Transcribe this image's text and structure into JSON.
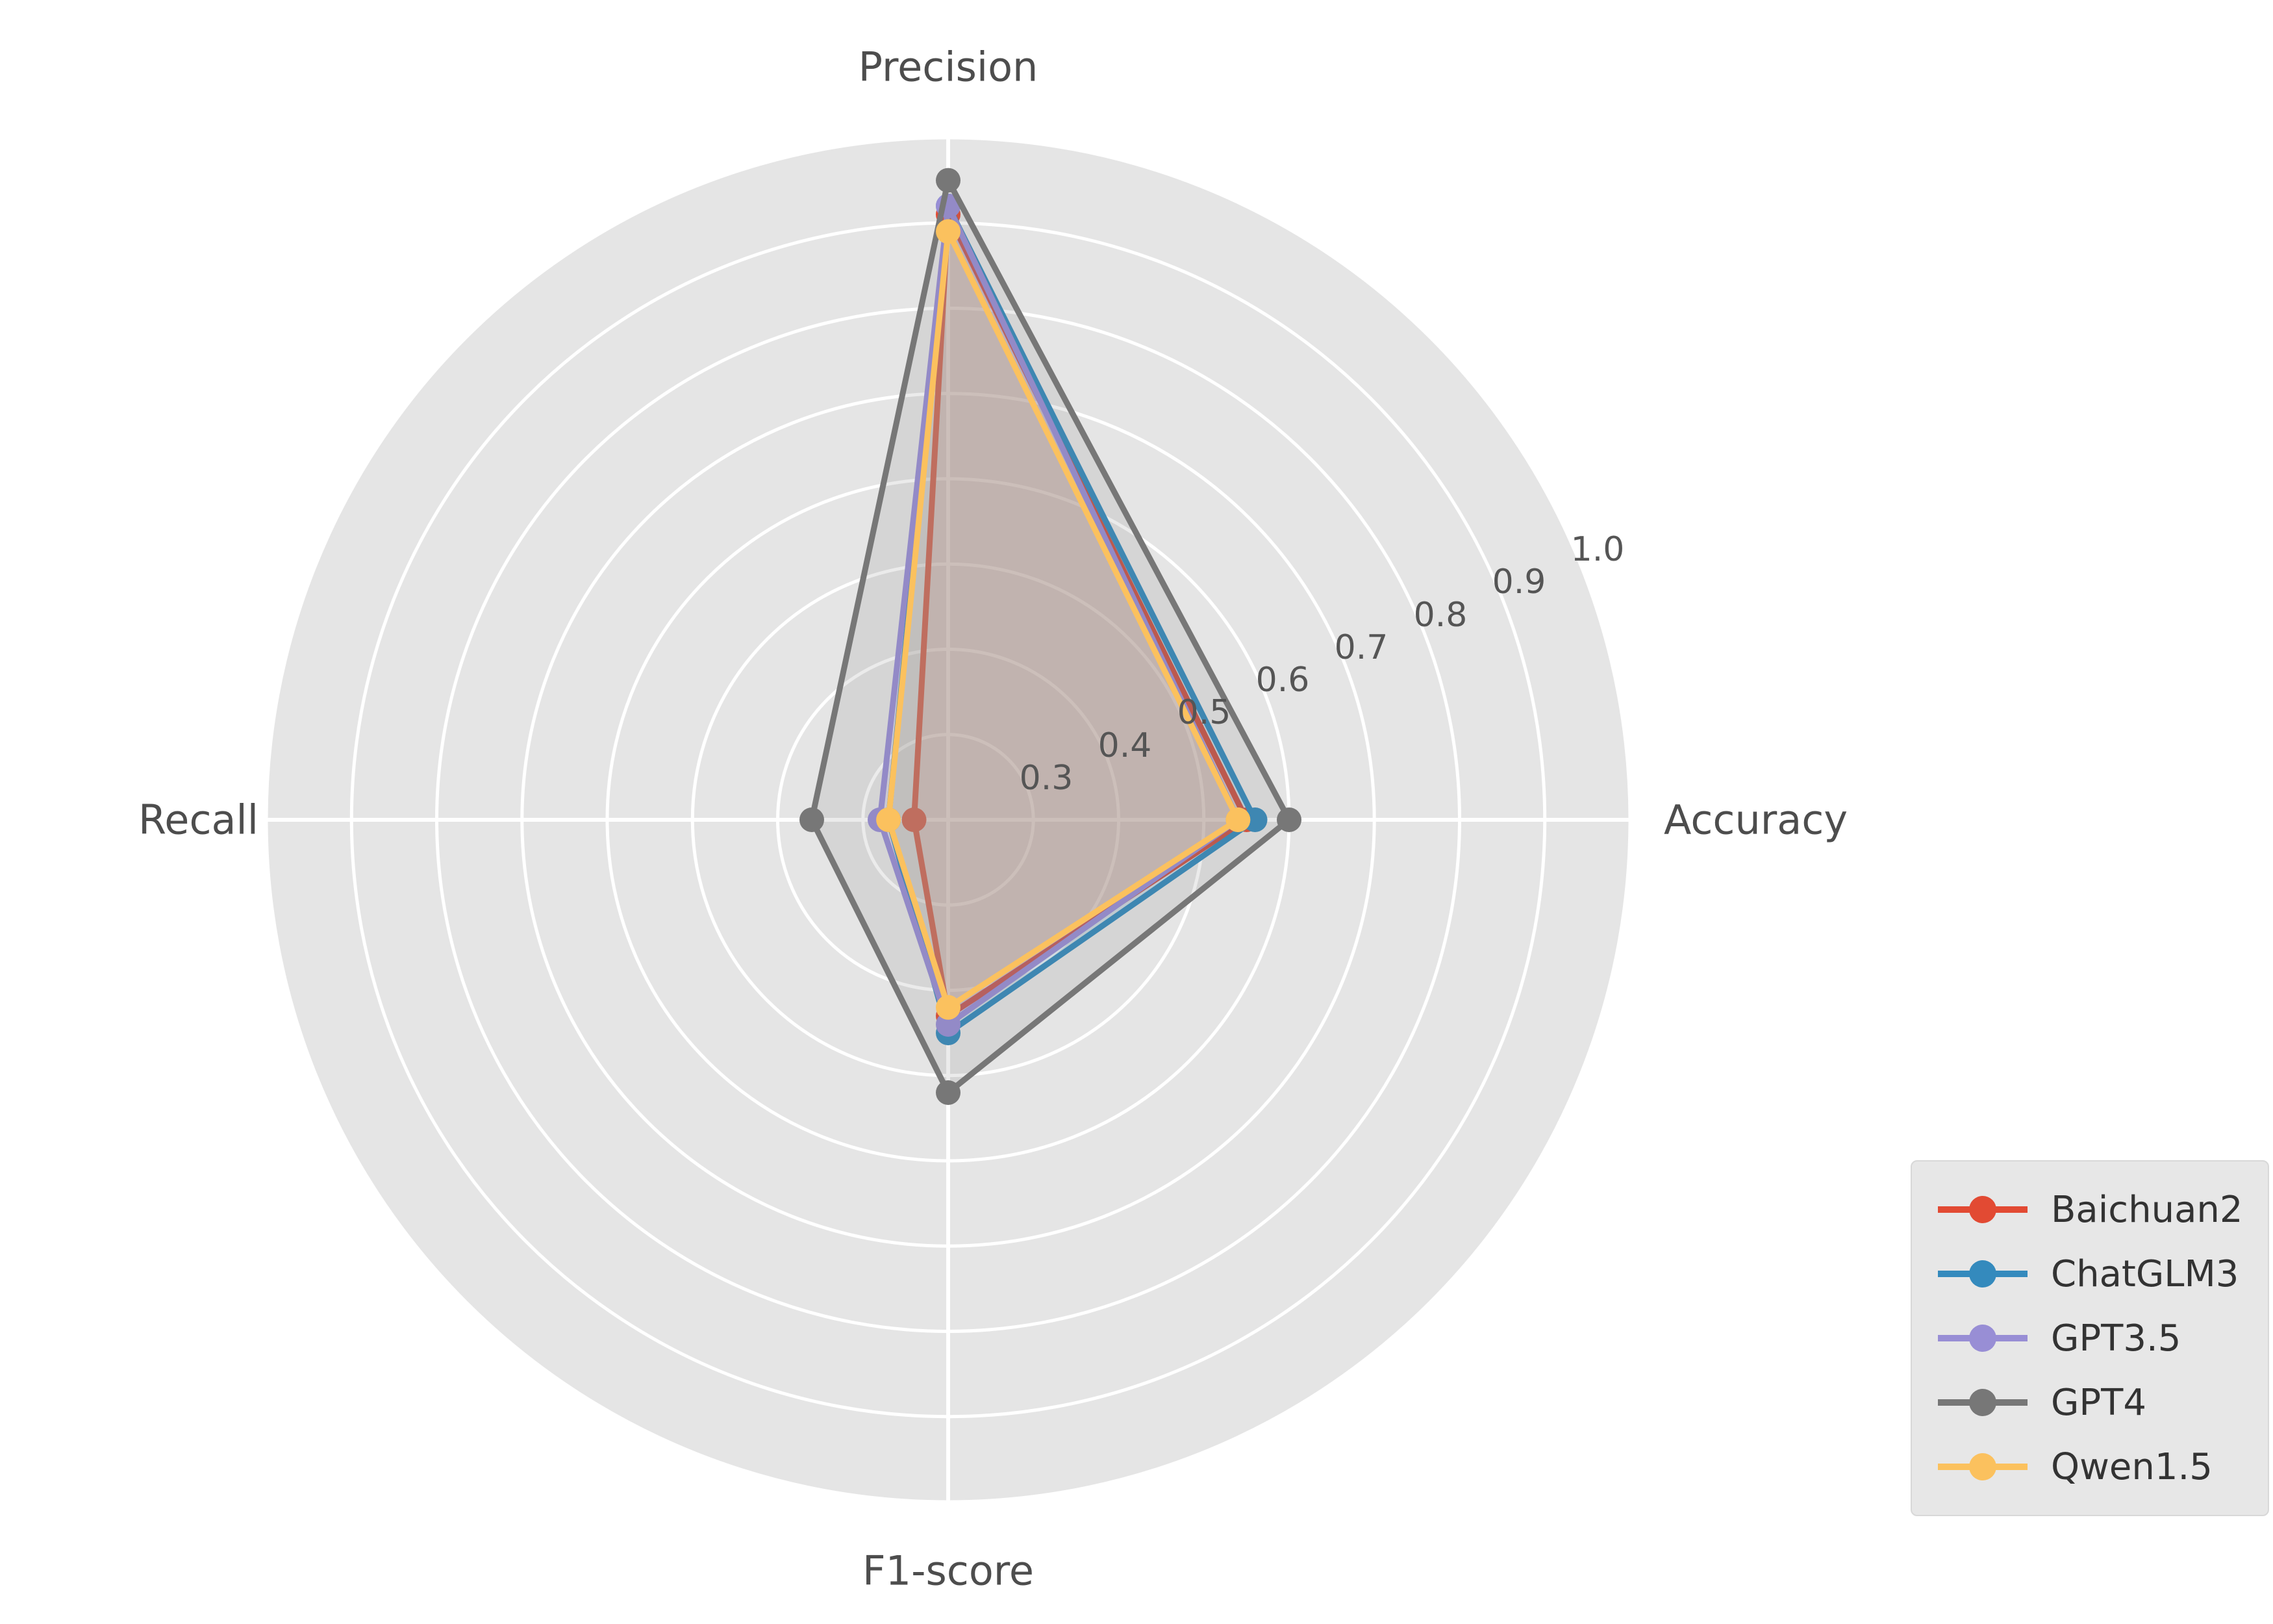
{
  "chart_data": {
    "type": "radar",
    "title": "",
    "categories": [
      "Precision",
      "Accuracy",
      "F1-score",
      "Recall"
    ],
    "series": [
      {
        "name": "Baichuan2",
        "color": "#E24A33",
        "values": [
          0.91,
          0.55,
          0.43,
          0.24
        ]
      },
      {
        "name": "ChatGLM3",
        "color": "#348ABD",
        "values": [
          0.92,
          0.56,
          0.45,
          0.27
        ]
      },
      {
        "name": "GPT3.5",
        "color": "#988ED5",
        "values": [
          0.92,
          0.54,
          0.44,
          0.28
        ]
      },
      {
        "name": "GPT4",
        "color": "#777777",
        "values": [
          0.95,
          0.6,
          0.52,
          0.36
        ]
      },
      {
        "name": "Qwen1.5",
        "color": "#FBC15E",
        "values": [
          0.89,
          0.54,
          0.42,
          0.27
        ]
      }
    ],
    "radial_ticks": [
      0.3,
      0.4,
      0.5,
      0.6,
      0.7,
      0.8,
      0.9,
      1.0
    ],
    "radial_tick_labels": [
      "0.3",
      "0.4",
      "0.5",
      "0.6",
      "0.7",
      "0.8",
      "0.9",
      "1.0"
    ],
    "r_min": 0.2,
    "r_max": 1.0,
    "tick_angle_deg": 22.5,
    "grid": true,
    "legend_position": "lower right",
    "styles": {
      "plot_bg": "#E5E5E5",
      "grid_color": "#FFFFFF",
      "text_color": "#555555",
      "fill_opacity": 0.15
    }
  }
}
